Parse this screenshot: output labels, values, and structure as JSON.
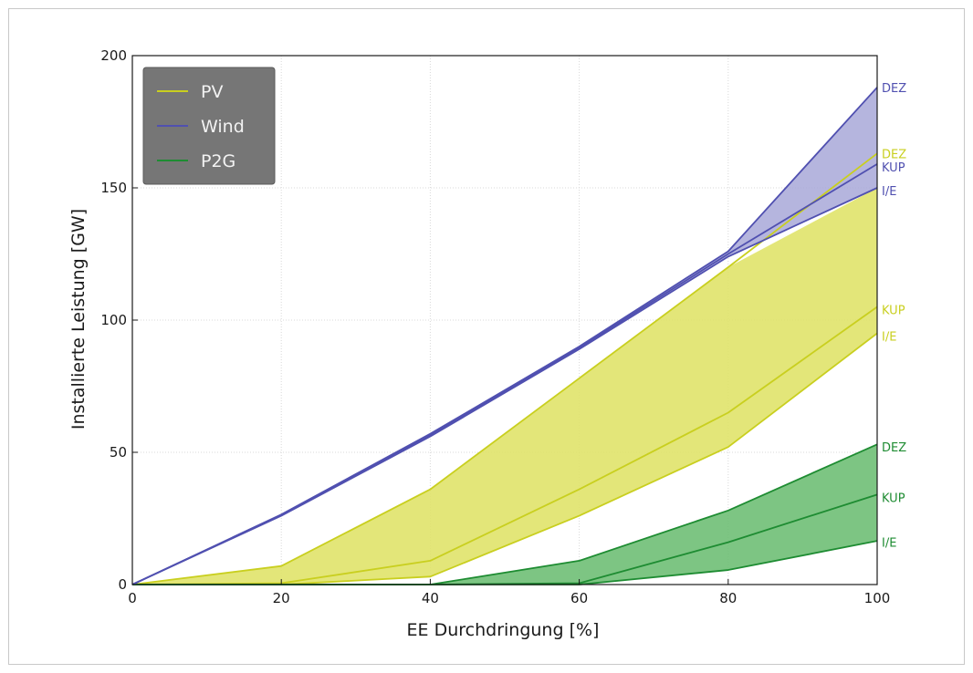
{
  "chart_data": {
    "type": "area",
    "title": "",
    "xlabel": "EE Durchdringung [%]",
    "ylabel": "Installierte Leistung [GW]",
    "xlim": [
      0,
      100
    ],
    "ylim": [
      0,
      200
    ],
    "x_ticks": [
      "0",
      "20",
      "40",
      "60",
      "80",
      "100"
    ],
    "y_ticks": [
      "0",
      "50",
      "100",
      "150",
      "200"
    ],
    "grid": true,
    "legend": {
      "position": "top-left",
      "entries": [
        "PV",
        "Wind",
        "P2G"
      ]
    },
    "x": [
      0,
      20,
      40,
      60,
      80,
      100
    ],
    "series": [
      {
        "name": "PV",
        "color": "#c9cf1f",
        "fill": "#e0e36a",
        "lines": [
          {
            "label": "DEZ",
            "values": [
              0,
              7,
              36,
              78,
              120,
              163
            ]
          },
          {
            "label": "KUP",
            "values": [
              0,
              0.5,
              9,
              36,
              65,
              105
            ]
          },
          {
            "label": "I/E",
            "values": [
              0,
              0,
              3,
              26,
              52,
              95
            ]
          }
        ],
        "band_upper": [
          0,
          7,
          36,
          78,
          120,
          150
        ]
      },
      {
        "name": "Wind",
        "color": "#5050b0",
        "fill": "#a8a8d8",
        "lines": [
          {
            "label": "DEZ",
            "values": [
              0,
              26.5,
              57,
              90,
              126,
              188
            ]
          },
          {
            "label": "KUP",
            "values": [
              0,
              26.3,
              56.5,
              89.5,
              125,
              159
            ]
          },
          {
            "label": "I/E",
            "values": [
              0,
              26,
              56,
              89,
              124,
              150
            ]
          }
        ]
      },
      {
        "name": "P2G",
        "color": "#1e8c32",
        "fill": "#6fbf75",
        "lines": [
          {
            "label": "DEZ",
            "values": [
              0,
              0,
              0,
              9,
              28,
              53
            ]
          },
          {
            "label": "KUP",
            "values": [
              0,
              0,
              0,
              0.5,
              16,
              34
            ]
          },
          {
            "label": "I/E",
            "values": [
              0,
              0,
              0,
              0,
              5.5,
              16.5
            ]
          }
        ]
      }
    ],
    "end_labels": [
      {
        "text": "DEZ",
        "series": "Wind",
        "value": 188
      },
      {
        "text": "DEZ",
        "series": "PV",
        "value": 163
      },
      {
        "text": "KUP",
        "series": "Wind",
        "value": 158
      },
      {
        "text": "I/E",
        "series": "Wind",
        "value": 149
      },
      {
        "text": "KUP",
        "series": "PV",
        "value": 104
      },
      {
        "text": "I/E",
        "series": "PV",
        "value": 94
      },
      {
        "text": "DEZ",
        "series": "P2G",
        "value": 52
      },
      {
        "text": "KUP",
        "series": "P2G",
        "value": 33
      },
      {
        "text": "I/E",
        "series": "P2G",
        "value": 16
      }
    ]
  }
}
